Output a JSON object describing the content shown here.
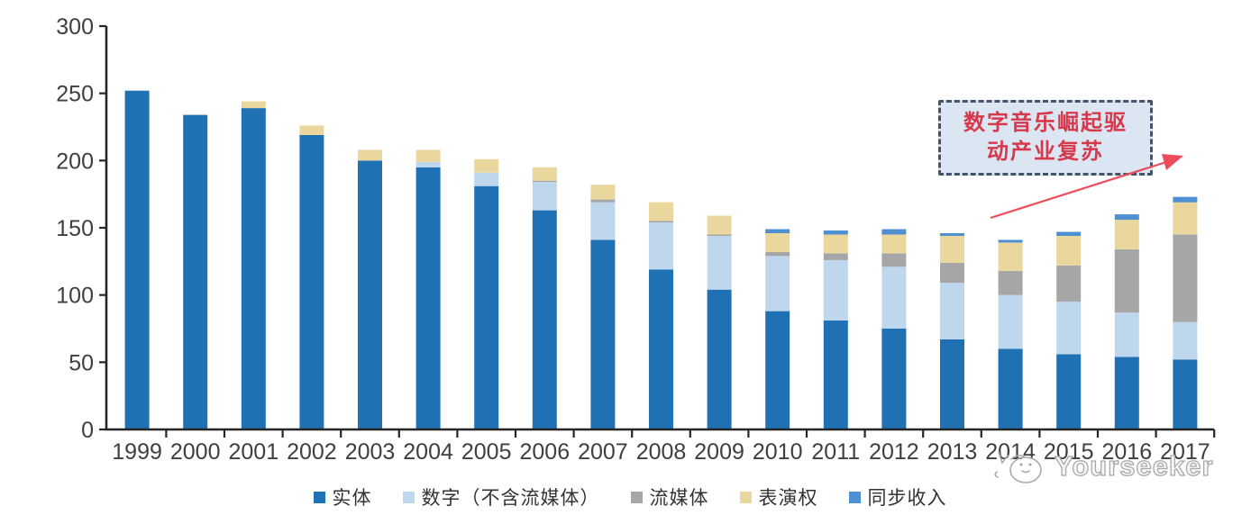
{
  "chart_data": {
    "type": "bar",
    "stacked": true,
    "title": "",
    "xlabel": "",
    "ylabel": "",
    "categories": [
      "1999",
      "2000",
      "2001",
      "2002",
      "2003",
      "2004",
      "2005",
      "2006",
      "2007",
      "2008",
      "2009",
      "2010",
      "2011",
      "2012",
      "2013",
      "2014",
      "2015",
      "2016",
      "2017"
    ],
    "series": [
      {
        "name": "实体",
        "color": "#2070b4",
        "values": [
          252,
          234,
          239,
          219,
          200,
          195,
          181,
          163,
          141,
          119,
          104,
          88,
          81,
          75,
          67,
          60,
          56,
          54,
          52
        ]
      },
      {
        "name": "数字（不含流媒体）",
        "color": "#bfd7ed",
        "values": [
          0,
          0,
          0,
          0,
          0,
          4,
          10,
          21,
          28,
          35,
          40,
          41,
          45,
          46,
          42,
          40,
          39,
          33,
          28
        ]
      },
      {
        "name": "流媒体",
        "color": "#a6a6a6",
        "values": [
          0,
          0,
          0,
          0,
          0,
          0,
          0,
          1,
          2,
          1,
          1,
          3,
          5,
          10,
          15,
          18,
          27,
          47,
          65
        ]
      },
      {
        "name": "表演权",
        "color": "#ead79d",
        "values": [
          0,
          0,
          5,
          7,
          8,
          9,
          10,
          10,
          11,
          14,
          14,
          14,
          14,
          14,
          20,
          21,
          22,
          22,
          24
        ]
      },
      {
        "name": "同步收入",
        "color": "#4e90d1",
        "values": [
          0,
          0,
          0,
          0,
          0,
          0,
          0,
          0,
          0,
          0,
          0,
          3,
          3,
          4,
          2,
          2,
          3,
          4,
          4
        ]
      }
    ],
    "ylim": [
      0,
      300
    ],
    "yticks": [
      0,
      50,
      100,
      150,
      200,
      250,
      300
    ],
    "grid": false,
    "legend_position": "bottom"
  },
  "annotation": {
    "line1": "数字音乐崛起驱",
    "line2": "动产业复苏",
    "text_color": "#d6394b",
    "fill_color": "#dce6f2",
    "border_color": "#44546a",
    "arrow_color": "#ee4c5a"
  },
  "watermark": {
    "text": "Yourseeker",
    "color": "#a9a9a9"
  }
}
